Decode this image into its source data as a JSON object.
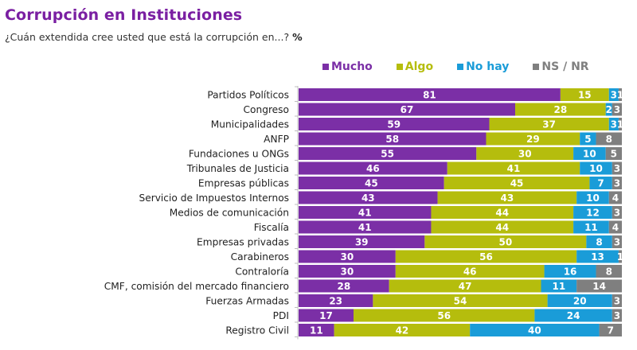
{
  "header": {
    "title": "Corrupción en Instituciones",
    "subtitle": "¿Cuán extendida cree usted que está la corrupción en...?",
    "unit": "%"
  },
  "colors": {
    "title": "#7a1fa2",
    "Mucho": "#7b2fa6",
    "Algo": "#b5bd0d",
    "No hay": "#1a9cd8",
    "NS / NR": "#7f7f7f"
  },
  "legend": [
    {
      "label": "Mucho",
      "color": "#7b2fa6"
    },
    {
      "label": "Algo",
      "color": "#b5bd0d"
    },
    {
      "label": "No hay",
      "color": "#1a9cd8"
    },
    {
      "label": "NS / NR",
      "color": "#7f7f7f"
    }
  ],
  "chart_data": {
    "type": "bar",
    "orientation": "horizontal",
    "stacked": true,
    "title": "Corrupción en Instituciones",
    "subtitle": "¿Cuán extendida cree usted que está la corrupción en...? %",
    "xlabel": "",
    "ylabel": "",
    "xlim": [
      0,
      100
    ],
    "grid": false,
    "legend_position": "top-right",
    "categories": [
      "Partidos Políticos",
      "Congreso",
      "Municipalidades",
      "ANFP",
      "Fundaciones u ONGs",
      "Tribunales de Justicia",
      "Empresas públicas",
      "Servicio de Impuestos Internos",
      "Medios de comunicación",
      "Fiscalía",
      "Empresas privadas",
      "Carabineros",
      "Contraloría",
      "CMF, comisión del mercado financiero",
      "Fuerzas Armadas",
      "PDI",
      "Registro Civil"
    ],
    "series": [
      {
        "name": "Mucho",
        "values": [
          81,
          67,
          59,
          58,
          55,
          46,
          45,
          43,
          41,
          41,
          39,
          30,
          30,
          28,
          23,
          17,
          11
        ]
      },
      {
        "name": "Algo",
        "values": [
          15,
          28,
          37,
          29,
          30,
          41,
          45,
          43,
          44,
          44,
          50,
          56,
          46,
          47,
          54,
          56,
          42
        ]
      },
      {
        "name": "No hay",
        "values": [
          3,
          2,
          3,
          5,
          10,
          10,
          7,
          10,
          12,
          11,
          8,
          13,
          16,
          11,
          20,
          24,
          40
        ]
      },
      {
        "name": "NS / NR",
        "values": [
          1,
          3,
          1,
          8,
          5,
          3,
          3,
          4,
          3,
          4,
          3,
          1,
          8,
          14,
          3,
          3,
          7
        ]
      }
    ]
  }
}
